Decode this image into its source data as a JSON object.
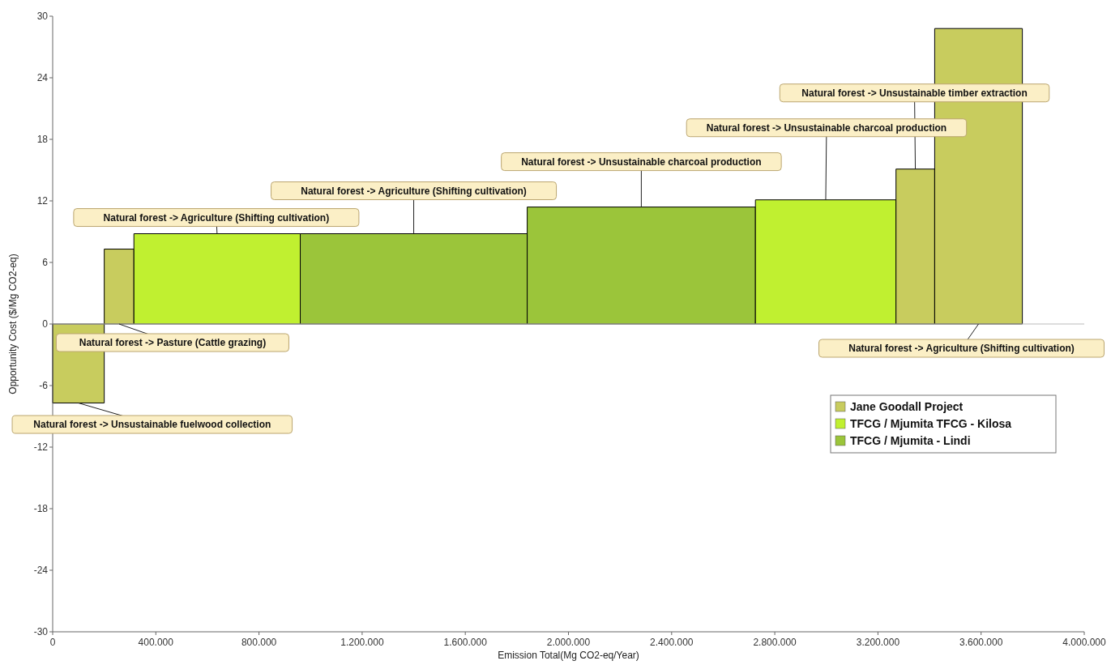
{
  "chart_data": {
    "type": "area",
    "xlabel": "Emission Total(Mg CO2-eq/Year)",
    "ylabel": "Opportunity Cost ($/Mg CO2-eq)",
    "xlim": [
      0,
      4000000
    ],
    "ylim": [
      -30,
      30
    ],
    "xticks": [
      0,
      {
        "value": 400000,
        "label": "400.000"
      },
      {
        "value": 800000,
        "label": "800.000"
      },
      {
        "value": 1200000,
        "label": "1.200.000"
      },
      {
        "value": 1600000,
        "label": "1.600.000"
      },
      {
        "value": 2000000,
        "label": "2.000.000"
      },
      {
        "value": 2400000,
        "label": "2.400.000"
      },
      {
        "value": 2800000,
        "label": "2.800.000"
      },
      {
        "value": 3200000,
        "label": "3.200.000"
      },
      {
        "value": 3600000,
        "label": "3.600.000"
      },
      {
        "value": 4000000,
        "label": "4.000.000"
      }
    ],
    "yticks": [
      -30,
      -24,
      -18,
      -12,
      -6,
      0,
      6,
      12,
      18,
      24,
      30
    ],
    "grid": false,
    "legend": "right",
    "ref_lines": [
      {
        "axis": "y",
        "value": 0,
        "color": "#bbbbbb"
      }
    ],
    "series": [
      {
        "name": "Jane Goodall Project",
        "color": "#c8cc5e",
        "x": [
          0,
          200000
        ],
        "values": [
          -7.7,
          -7.7
        ]
      },
      {
        "color": "#c8cc5e",
        "x": [
          200000,
          315000
        ],
        "values": [
          7.3,
          7.3
        ]
      },
      {
        "name": "TFCG / Mjumita TFCG - Kilosa",
        "color": "#c0f030",
        "x": [
          315000,
          960000
        ],
        "values": [
          8.8,
          8.8
        ]
      },
      {
        "name": "TFCG / Mjumita - Lindi",
        "color": "#9bc53a",
        "x": [
          960000,
          1840000
        ],
        "values": [
          8.8,
          8.8
        ]
      },
      {
        "color": "#9bc53a",
        "x": [
          1840000,
          2725000
        ],
        "values": [
          11.4,
          11.4
        ]
      },
      {
        "color": "#c0f030",
        "x": [
          2725000,
          3270000
        ],
        "values": [
          12.1,
          12.1
        ]
      },
      {
        "color": "#c8cc5e",
        "x": [
          3270000,
          3420000
        ],
        "values": [
          15.1,
          15.1
        ]
      },
      {
        "color": "#c8cc5e",
        "x": [
          3420000,
          3760000
        ],
        "values": [
          28.8,
          28.8
        ]
      }
    ],
    "annotations": [
      {
        "text": "Natural forest -> Unsustainable fuelwood collection",
        "x": 100000,
        "y": -7.7
      },
      {
        "text": "Natural forest -> Pasture (Cattle grazing)",
        "x": 257500,
        "y": 0
      },
      {
        "text": "Natural forest -> Agriculture (Shifting cultivation)",
        "x": 637500,
        "y": 8.8
      },
      {
        "text": "Natural forest -> Agriculture (Shifting cultivation)",
        "x": 1400000,
        "y": 8.8
      },
      {
        "text": "Natural forest -> Unsustainable charcoal production",
        "x": 2282500,
        "y": 11.4
      },
      {
        "text": "Natural forest -> Unsustainable charcoal production",
        "x": 2997500,
        "y": 12.1
      },
      {
        "text": "Natural forest -> Unsustainable timber extraction",
        "x": 3345000,
        "y": 15.1
      },
      {
        "text": "Natural forest -> Agriculture (Shifting cultivation)",
        "x": 3590000,
        "y": 0
      }
    ]
  }
}
